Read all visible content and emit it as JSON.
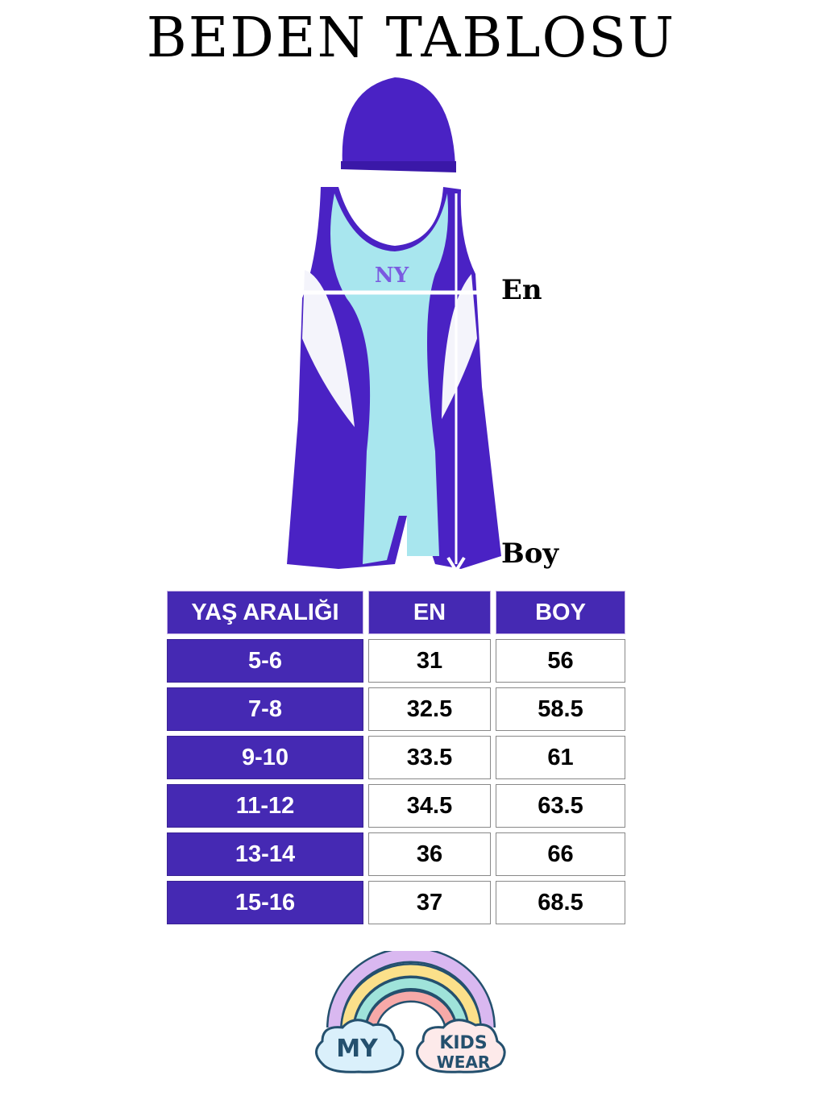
{
  "title": "BEDEN TABLOSU",
  "diagram": {
    "width_label": "En",
    "length_label": "Boy"
  },
  "size_table": {
    "headers": [
      "YAŞ ARALIĞI",
      "EN",
      "BOY"
    ],
    "rows": [
      {
        "age": "5-6",
        "en": "31",
        "boy": "56"
      },
      {
        "age": "7-8",
        "en": "32.5",
        "boy": "58.5"
      },
      {
        "age": "9-10",
        "en": "33.5",
        "boy": "61"
      },
      {
        "age": "11-12",
        "en": "34.5",
        "boy": "63.5"
      },
      {
        "age": "13-14",
        "en": "36",
        "boy": "66"
      },
      {
        "age": "15-16",
        "en": "37",
        "boy": "68.5"
      }
    ]
  },
  "logo": {
    "left": "MY",
    "right_top": "KIDS",
    "right_bottom": "WEAR"
  },
  "colors": {
    "header_bg": "#4529b3",
    "garment_purple": "#4a22c4",
    "garment_aqua": "#a8e6ee"
  }
}
